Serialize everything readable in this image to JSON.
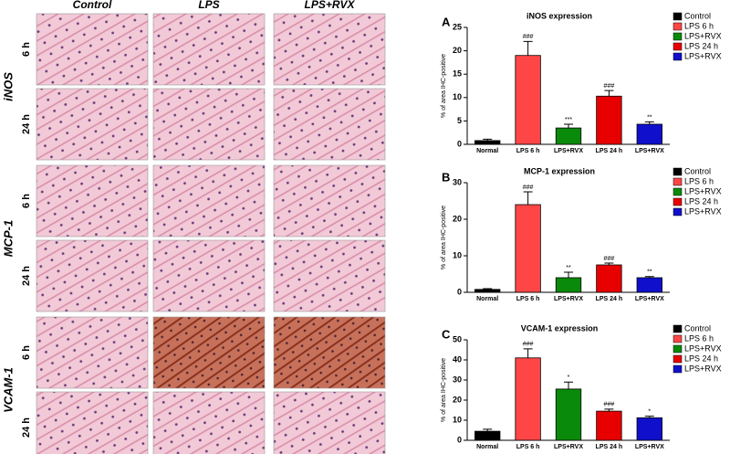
{
  "micrograph_panel": {
    "columns": [
      "Control",
      "LPS",
      "LPS+RVX"
    ],
    "rows": [
      {
        "marker": "iNOS",
        "times": [
          "6 h",
          "24 h"
        ]
      },
      {
        "marker": "MCP-1",
        "times": [
          "6 h",
          "24 h"
        ]
      },
      {
        "marker": "VCAM-1",
        "times": [
          "6 h",
          "24 h"
        ]
      }
    ]
  },
  "chart_data": [
    {
      "type": "bar",
      "panel": "A",
      "title": "iNOS expression",
      "y_label": "% of area IHC-positive",
      "categories": [
        "Normal",
        "LPS 6 h",
        "LPS+RVX",
        "LPS 24 h",
        "LPS+RVX"
      ],
      "values": [
        0.8,
        19,
        3.5,
        10.3,
        4.3
      ],
      "errors": [
        0.3,
        3,
        0.8,
        1.2,
        0.5
      ],
      "annotations": [
        null,
        "###",
        "***",
        "###",
        "**"
      ],
      "colors": [
        "#000000",
        "#ff4646",
        "#0a8a0a",
        "#e80000",
        "#1010cc"
      ],
      "legend": [
        "Control",
        "LPS 6 h",
        "LPS+RVX",
        "LPS 24 h",
        "LPS+RVX"
      ],
      "ylim": [
        0,
        25
      ],
      "yticks": [
        0,
        5,
        10,
        15,
        20,
        25
      ]
    },
    {
      "type": "bar",
      "panel": "B",
      "title": "MCP-1 expression",
      "y_label": "% of area IHC-positive",
      "categories": [
        "Normal",
        "LPS 6 h",
        "LPS+RVX",
        "LPS 24 h",
        "LPS+RVX"
      ],
      "values": [
        0.8,
        24,
        4,
        7.5,
        4
      ],
      "errors": [
        0.2,
        3.5,
        1.5,
        0.5,
        0.3
      ],
      "annotations": [
        null,
        "###",
        "**",
        "###",
        "**"
      ],
      "colors": [
        "#000000",
        "#ff4646",
        "#0a8a0a",
        "#e80000",
        "#1010cc"
      ],
      "legend": [
        "Control",
        "LPS 6 h",
        "LPS+RVX",
        "LPS 24 h",
        "LPS+RVX"
      ],
      "ylim": [
        0,
        30
      ],
      "yticks": [
        0,
        10,
        20,
        30
      ]
    },
    {
      "type": "bar",
      "panel": "C",
      "title": "VCAM-1 expression",
      "y_label": "% of area IHC-positive",
      "categories": [
        "Normal",
        "LPS 6 h",
        "LPS+RVX",
        "LPS 24 h",
        "LPS+RVX"
      ],
      "values": [
        4.5,
        41,
        25.5,
        14.5,
        11.2
      ],
      "errors": [
        1,
        4.5,
        3.5,
        1,
        0.8
      ],
      "annotations": [
        null,
        "###",
        "*",
        "###",
        "*"
      ],
      "colors": [
        "#000000",
        "#ff4646",
        "#0a8a0a",
        "#e80000",
        "#1010cc"
      ],
      "legend": [
        "Control",
        "LPS 6 h",
        "LPS+RVX",
        "LPS 24 h",
        "LPS+RVX"
      ],
      "ylim": [
        0,
        50
      ],
      "yticks": [
        0,
        10,
        20,
        30,
        40,
        50
      ]
    }
  ]
}
